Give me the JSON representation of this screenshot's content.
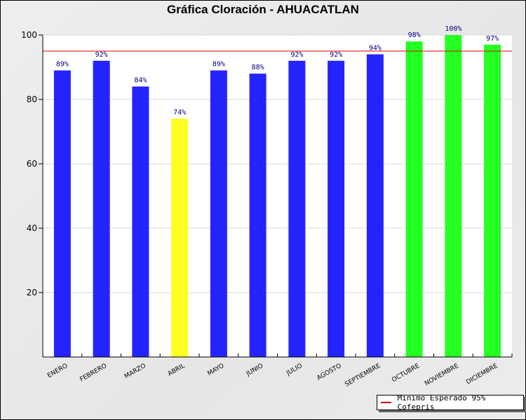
{
  "chart_data": {
    "type": "bar",
    "title": "Gráfica Cloración - AHUACATLAN",
    "xlabel": "",
    "ylabel": "",
    "ylim": [
      0,
      100
    ],
    "yticks": [
      20,
      40,
      60,
      80,
      100
    ],
    "grid": true,
    "categories": [
      "ENERO",
      "FEBRERO",
      "MARZO",
      "ABRIL",
      "MAYO",
      "JUNIO",
      "JULIO",
      "AGOSTO",
      "SEPTIEMBRE",
      "OCTUBRE",
      "NOVIEMBRE",
      "DICIEMBRE"
    ],
    "values": [
      89,
      92,
      84,
      74,
      89,
      88,
      92,
      92,
      94,
      98,
      100,
      97
    ],
    "data_labels": [
      "89%",
      "92%",
      "84%",
      "74%",
      "89%",
      "88%",
      "92%",
      "92%",
      "94%",
      "98%",
      "100%",
      "97%"
    ],
    "bar_colors": [
      "#2424ff",
      "#2424ff",
      "#2424ff",
      "#ffff24",
      "#2424ff",
      "#2424ff",
      "#2424ff",
      "#2424ff",
      "#2424ff",
      "#24ff24",
      "#24ff24",
      "#24ff24"
    ],
    "reference_line": {
      "value": 95,
      "label": "Minimo Esperado 95% Cofepris",
      "color": "#e00000"
    },
    "legend_position": "bottom-right",
    "label_color": "#000080"
  }
}
